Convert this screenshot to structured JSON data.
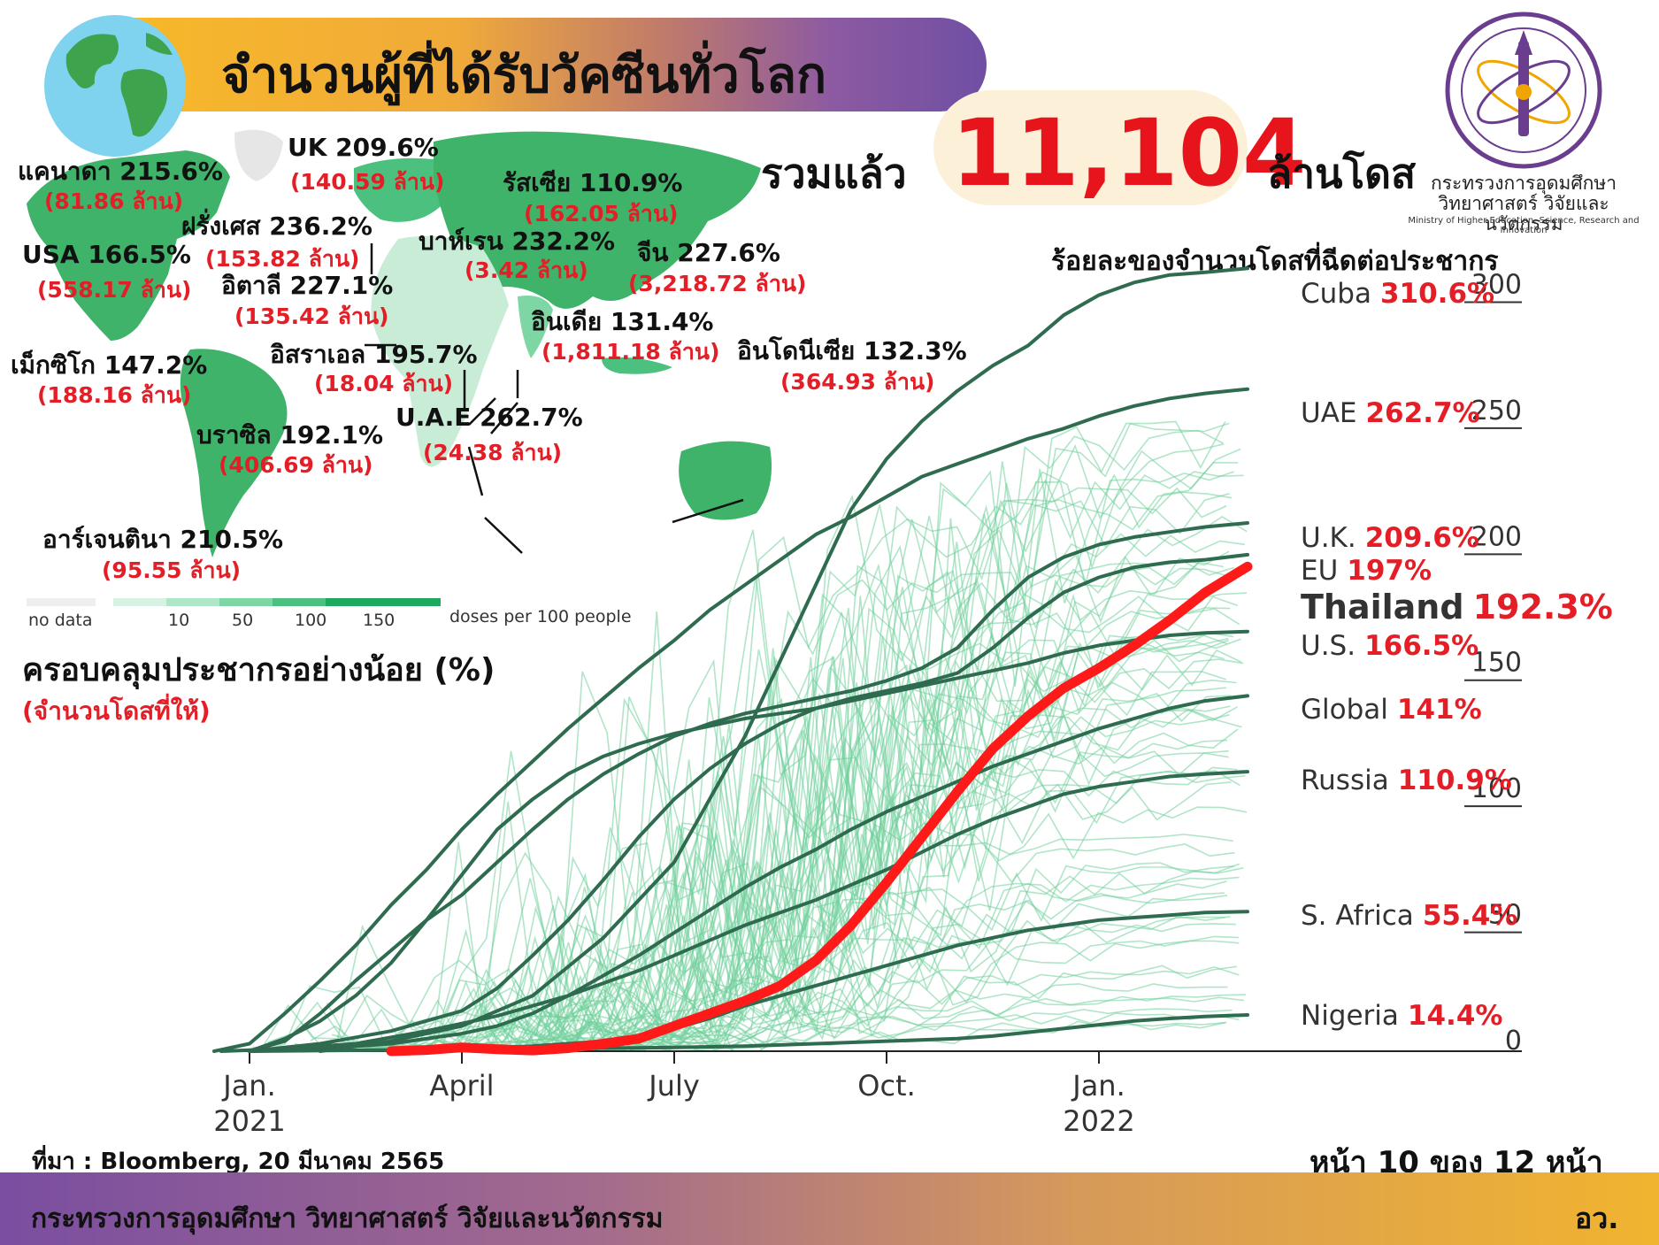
{
  "header": {
    "title": "จำนวนผู้ที่ได้รับวัคซีนทั่วโลก",
    "total_label": "รวมแล้ว",
    "total_value": "11,104",
    "total_unit": "ล้านโดส"
  },
  "ministry": {
    "name_th_1": "กระทรวงการอุดมศึกษา",
    "name_th_2": "วิทยาศาสตร์ วิจัยและนวัตกรรม",
    "name_en": "Ministry of Higher Education, Science, Research and Innovation"
  },
  "map": {
    "countries": [
      {
        "name": "แคนาดา",
        "pct": "215.6%",
        "doses": "(81.86 ล้าน)"
      },
      {
        "name": "UK",
        "pct": "209.6%",
        "doses": "(140.59 ล้าน)"
      },
      {
        "name": "รัสเซีย",
        "pct": "110.9%",
        "doses": "(162.05 ล้าน)"
      },
      {
        "name": "ฝรั่งเศส",
        "pct": "236.2%",
        "doses": "(153.82 ล้าน)"
      },
      {
        "name": "USA",
        "pct": "166.5%",
        "doses": "(558.17 ล้าน)"
      },
      {
        "name": "บาห์เรน",
        "pct": "232.2%",
        "doses": "(3.42 ล้าน)"
      },
      {
        "name": "จีน",
        "pct": "227.6%",
        "doses": "(3,218.72 ล้าน)"
      },
      {
        "name": "อิตาลี",
        "pct": "227.1%",
        "doses": "(135.42 ล้าน)"
      },
      {
        "name": "อินเดีย",
        "pct": "131.4%",
        "doses": "(1,811.18 ล้าน)"
      },
      {
        "name": "อิสราเอล",
        "pct": "195.7%",
        "doses": "(18.04 ล้าน)"
      },
      {
        "name": "อินโดนีเซีย",
        "pct": "132.3%",
        "doses": "(364.93 ล้าน)"
      },
      {
        "name": "เม็กซิโก",
        "pct": "147.2%",
        "doses": "(188.16 ล้าน)"
      },
      {
        "name": "U.A.E",
        "pct": "262.7%",
        "doses": "(24.38 ล้าน)"
      },
      {
        "name": "บราซิล",
        "pct": "192.1%",
        "doses": "(406.69 ล้าน)"
      },
      {
        "name": "อาร์เจนตินา",
        "pct": "210.5%",
        "doses": "(95.55 ล้าน)"
      }
    ],
    "legend": {
      "no_data": "no data",
      "ticks": [
        "10",
        "50",
        "100",
        "150"
      ],
      "unit": "doses per 100 people",
      "colors": [
        "#eeeeee",
        "#d7f2e3",
        "#aee6c7",
        "#7fd6a5",
        "#4cc17f",
        "#1fa95e"
      ]
    },
    "coverage_title": "ครอบคลุมประชากรอย่างน้อย (%)",
    "coverage_sub": "(จำนวนโดสที่ให้)"
  },
  "chart_data": {
    "type": "line",
    "title": "ร้อยละของจำนวนโดสที่ฉีดต่อประชากร",
    "x_ticks": [
      {
        "label": "Jan.",
        "year": "2021",
        "month": 0
      },
      {
        "label": "April",
        "year": "",
        "month": 3
      },
      {
        "label": "July",
        "year": "",
        "month": 6
      },
      {
        "label": "Oct.",
        "year": "",
        "month": 9
      },
      {
        "label": "Jan.",
        "year": "2022",
        "month": 12
      }
    ],
    "x_range_months": [
      -0.4,
      14.7
    ],
    "y_ticks": [
      0,
      50,
      100,
      150,
      200,
      250,
      300
    ],
    "ylim": [
      0,
      310
    ],
    "series": [
      {
        "name": "Cuba",
        "pct": "310.6%",
        "highlight": false,
        "points": [
          [
            1.0,
            0
          ],
          [
            2.0,
            4
          ],
          [
            3.0,
            10
          ],
          [
            4.0,
            22
          ],
          [
            5.0,
            45
          ],
          [
            6.0,
            75
          ],
          [
            6.5,
            100
          ],
          [
            7.0,
            125
          ],
          [
            7.5,
            155
          ],
          [
            8.0,
            185
          ],
          [
            8.5,
            215
          ],
          [
            9.0,
            235
          ],
          [
            9.5,
            250
          ],
          [
            10.0,
            262
          ],
          [
            10.5,
            272
          ],
          [
            11.0,
            280
          ],
          [
            11.5,
            292
          ],
          [
            12.0,
            300
          ],
          [
            12.5,
            305
          ],
          [
            13.0,
            308
          ],
          [
            13.5,
            309
          ],
          [
            14.1,
            310.6
          ]
        ]
      },
      {
        "name": "UAE",
        "pct": "262.7%",
        "highlight": false,
        "points": [
          [
            -0.5,
            0
          ],
          [
            0,
            3
          ],
          [
            0.5,
            15
          ],
          [
            1.0,
            28
          ],
          [
            1.5,
            42
          ],
          [
            2.0,
            58
          ],
          [
            2.5,
            72
          ],
          [
            3.0,
            88
          ],
          [
            3.5,
            102
          ],
          [
            4.0,
            115
          ],
          [
            4.5,
            128
          ],
          [
            5.0,
            140
          ],
          [
            5.5,
            152
          ],
          [
            6.0,
            163
          ],
          [
            6.5,
            175
          ],
          [
            7.0,
            185
          ],
          [
            7.5,
            195
          ],
          [
            8.0,
            205
          ],
          [
            8.5,
            212
          ],
          [
            9.0,
            220
          ],
          [
            9.5,
            228
          ],
          [
            10.0,
            233
          ],
          [
            10.5,
            238
          ],
          [
            11.0,
            243
          ],
          [
            11.5,
            247
          ],
          [
            12.0,
            252
          ],
          [
            12.5,
            256
          ],
          [
            13.0,
            259
          ],
          [
            13.5,
            261
          ],
          [
            14.1,
            262.7
          ]
        ]
      },
      {
        "name": "U.K.",
        "pct": "209.6%",
        "highlight": false,
        "points": [
          [
            0,
            0
          ],
          [
            0.5,
            4
          ],
          [
            1.0,
            15
          ],
          [
            1.5,
            28
          ],
          [
            2.0,
            40
          ],
          [
            2.5,
            52
          ],
          [
            3.0,
            62
          ],
          [
            3.5,
            75
          ],
          [
            4.0,
            88
          ],
          [
            4.5,
            100
          ],
          [
            5.0,
            110
          ],
          [
            5.5,
            118
          ],
          [
            6.0,
            125
          ],
          [
            6.5,
            130
          ],
          [
            7.0,
            134
          ],
          [
            7.5,
            137
          ],
          [
            8.0,
            140
          ],
          [
            8.5,
            143
          ],
          [
            9.0,
            147
          ],
          [
            9.5,
            152
          ],
          [
            10.0,
            160
          ],
          [
            10.5,
            175
          ],
          [
            11.0,
            188
          ],
          [
            11.5,
            196
          ],
          [
            12.0,
            201
          ],
          [
            12.5,
            204
          ],
          [
            13.0,
            206
          ],
          [
            13.5,
            208
          ],
          [
            14.1,
            209.6
          ]
        ]
      },
      {
        "name": "EU",
        "pct": "197%",
        "highlight": false,
        "points": [
          [
            0,
            0
          ],
          [
            1.0,
            3
          ],
          [
            2.0,
            8
          ],
          [
            3.0,
            16
          ],
          [
            3.5,
            25
          ],
          [
            4.0,
            38
          ],
          [
            4.5,
            52
          ],
          [
            5.0,
            68
          ],
          [
            5.5,
            85
          ],
          [
            6.0,
            100
          ],
          [
            6.5,
            112
          ],
          [
            7.0,
            122
          ],
          [
            7.5,
            130
          ],
          [
            8.0,
            136
          ],
          [
            8.5,
            140
          ],
          [
            9.0,
            143
          ],
          [
            9.5,
            146
          ],
          [
            10.0,
            150
          ],
          [
            10.5,
            160
          ],
          [
            11.0,
            172
          ],
          [
            11.5,
            182
          ],
          [
            12.0,
            188
          ],
          [
            12.5,
            192
          ],
          [
            13.0,
            194
          ],
          [
            13.5,
            195
          ],
          [
            14.1,
            197
          ]
        ]
      },
      {
        "name": "Thailand",
        "pct": "192.3%",
        "highlight": true,
        "points": [
          [
            2.0,
            0
          ],
          [
            2.5,
            0.5
          ],
          [
            3.0,
            1.5
          ],
          [
            3.5,
            0.8
          ],
          [
            4.0,
            0.3
          ],
          [
            4.5,
            1.2
          ],
          [
            5.0,
            3
          ],
          [
            5.5,
            5
          ],
          [
            6.0,
            10
          ],
          [
            6.5,
            15
          ],
          [
            7.0,
            20
          ],
          [
            7.5,
            26
          ],
          [
            8.0,
            36
          ],
          [
            8.5,
            50
          ],
          [
            9.0,
            67
          ],
          [
            9.5,
            85
          ],
          [
            10.0,
            103
          ],
          [
            10.5,
            120
          ],
          [
            11.0,
            133
          ],
          [
            11.5,
            144
          ],
          [
            12.0,
            152
          ],
          [
            12.5,
            161
          ],
          [
            13.0,
            171
          ],
          [
            13.5,
            182
          ],
          [
            14.1,
            192.3
          ]
        ]
      },
      {
        "name": "U.S.",
        "pct": "166.5%",
        "highlight": false,
        "points": [
          [
            0,
            0
          ],
          [
            0.5,
            5
          ],
          [
            1.0,
            12
          ],
          [
            1.5,
            22
          ],
          [
            2.0,
            35
          ],
          [
            2.5,
            52
          ],
          [
            3.0,
            70
          ],
          [
            3.5,
            88
          ],
          [
            4.0,
            100
          ],
          [
            4.5,
            110
          ],
          [
            5.0,
            117
          ],
          [
            5.5,
            122
          ],
          [
            6.0,
            126
          ],
          [
            6.5,
            129
          ],
          [
            7.0,
            132
          ],
          [
            7.5,
            134
          ],
          [
            8.0,
            136
          ],
          [
            8.5,
            139
          ],
          [
            9.0,
            142
          ],
          [
            9.5,
            145
          ],
          [
            10.0,
            148
          ],
          [
            10.5,
            151
          ],
          [
            11.0,
            154
          ],
          [
            11.5,
            158
          ],
          [
            12.0,
            161
          ],
          [
            12.5,
            163
          ],
          [
            13.0,
            165
          ],
          [
            13.5,
            166
          ],
          [
            14.1,
            166.5
          ]
        ]
      },
      {
        "name": "Global",
        "pct": "141%",
        "highlight": false,
        "points": [
          [
            0,
            0
          ],
          [
            1.0,
            1
          ],
          [
            2.0,
            3
          ],
          [
            3.0,
            7
          ],
          [
            3.5,
            10
          ],
          [
            4.0,
            15
          ],
          [
            4.5,
            22
          ],
          [
            5.0,
            30
          ],
          [
            5.5,
            38
          ],
          [
            6.0,
            47
          ],
          [
            6.5,
            56
          ],
          [
            7.0,
            65
          ],
          [
            7.5,
            73
          ],
          [
            8.0,
            80
          ],
          [
            8.5,
            88
          ],
          [
            9.0,
            95
          ],
          [
            9.5,
            101
          ],
          [
            10.0,
            107
          ],
          [
            10.5,
            113
          ],
          [
            11.0,
            118
          ],
          [
            11.5,
            123
          ],
          [
            12.0,
            128
          ],
          [
            12.5,
            132
          ],
          [
            13.0,
            136
          ],
          [
            13.5,
            139
          ],
          [
            14.1,
            141
          ]
        ]
      },
      {
        "name": "Russia",
        "pct": "110.9%",
        "highlight": false,
        "points": [
          [
            -0.4,
            0
          ],
          [
            0.5,
            1
          ],
          [
            1.5,
            3
          ],
          [
            2.5,
            8
          ],
          [
            3.5,
            14
          ],
          [
            4.5,
            22
          ],
          [
            5.0,
            27
          ],
          [
            5.5,
            32
          ],
          [
            6.0,
            38
          ],
          [
            6.5,
            44
          ],
          [
            7.0,
            50
          ],
          [
            7.5,
            55
          ],
          [
            8.0,
            60
          ],
          [
            8.5,
            66
          ],
          [
            9.0,
            72
          ],
          [
            9.5,
            79
          ],
          [
            10.0,
            86
          ],
          [
            10.5,
            92
          ],
          [
            11.0,
            97
          ],
          [
            11.5,
            102
          ],
          [
            12.0,
            105
          ],
          [
            12.5,
            107
          ],
          [
            13.0,
            109
          ],
          [
            13.5,
            110
          ],
          [
            14.1,
            110.9
          ]
        ]
      },
      {
        "name": "S. Africa",
        "pct": "55.4%",
        "highlight": false,
        "points": [
          [
            0,
            0
          ],
          [
            2.0,
            0.5
          ],
          [
            3.0,
            1
          ],
          [
            4.0,
            2
          ],
          [
            5.0,
            4
          ],
          [
            5.5,
            6
          ],
          [
            6.0,
            9
          ],
          [
            6.5,
            13
          ],
          [
            7.0,
            18
          ],
          [
            7.5,
            22
          ],
          [
            8.0,
            26
          ],
          [
            8.5,
            30
          ],
          [
            9.0,
            34
          ],
          [
            9.5,
            38
          ],
          [
            10.0,
            42
          ],
          [
            10.5,
            45
          ],
          [
            11.0,
            48
          ],
          [
            11.5,
            50
          ],
          [
            12.0,
            52
          ],
          [
            12.5,
            53
          ],
          [
            13.0,
            54
          ],
          [
            13.5,
            55
          ],
          [
            14.1,
            55.4
          ]
        ]
      },
      {
        "name": "Nigeria",
        "pct": "14.4%",
        "highlight": false,
        "points": [
          [
            2.0,
            0
          ],
          [
            3.0,
            0.3
          ],
          [
            4.0,
            0.8
          ],
          [
            5.0,
            1.2
          ],
          [
            6.0,
            1.5
          ],
          [
            7.0,
            2
          ],
          [
            8.0,
            3
          ],
          [
            9.0,
            4
          ],
          [
            10.0,
            5
          ],
          [
            10.5,
            6
          ],
          [
            11.0,
            7.5
          ],
          [
            11.5,
            9
          ],
          [
            12.0,
            10.5
          ],
          [
            12.5,
            12
          ],
          [
            13.0,
            13
          ],
          [
            13.5,
            13.8
          ],
          [
            14.1,
            14.4
          ]
        ]
      }
    ],
    "colors": {
      "countries": "#2e6b4f",
      "background_lines": "#6fcf9a",
      "highlight": "#ff1a1a",
      "pct_label": "#e41e26"
    }
  },
  "footer": {
    "source": "ที่มา : Bloomberg, 20 มีนาคม 2565",
    "page": "หน้า 10 ของ 12 หน้า",
    "ministry": "กระทรวงการอุดมศึกษา วิทยาศาสตร์ วิจัยและนวัตกรรม",
    "abbr": "อว."
  }
}
